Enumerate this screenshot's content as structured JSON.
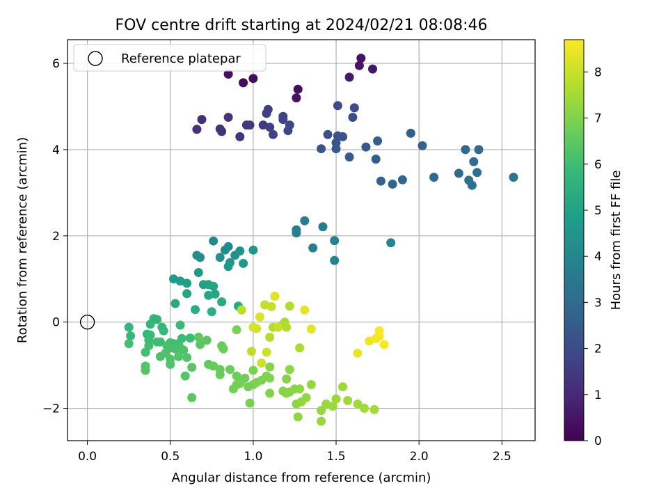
{
  "chart_data": {
    "type": "scatter",
    "title": "FOV centre drift starting at 2024/02/21 08:08:46",
    "xlabel": "Angular distance from reference (arcmin)",
    "ylabel": "Rotation from reference (arcmin)",
    "xlim": [
      -0.12,
      2.7
    ],
    "ylim": [
      -2.75,
      6.55
    ],
    "xticks": [
      0.0,
      0.5,
      1.0,
      1.5,
      2.0,
      2.5
    ],
    "xtick_labels": [
      "0.0",
      "0.5",
      "1.0",
      "1.5",
      "2.0",
      "2.5"
    ],
    "yticks": [
      -2,
      0,
      2,
      4,
      6
    ],
    "ytick_labels": [
      "−2",
      "0",
      "2",
      "4",
      "6"
    ],
    "grid": true,
    "legend": {
      "position": "upper-left",
      "label": "Reference platepar"
    },
    "reference_point": {
      "x": 0.0,
      "y": 0.0
    },
    "colorbar": {
      "label": "Hours from first FF file",
      "min": 0,
      "max": 8.7,
      "ticks": [
        0,
        1,
        2,
        3,
        4,
        5,
        6,
        7,
        8
      ],
      "tick_labels": [
        "0",
        "1",
        "2",
        "3",
        "4",
        "5",
        "6",
        "7",
        "8"
      ],
      "colormap": "viridis",
      "stops": [
        "#440154",
        "#482878",
        "#3e4989",
        "#31688e",
        "#26828e",
        "#1f9e89",
        "#35b779",
        "#6ece58",
        "#b5de2b",
        "#fde725"
      ]
    },
    "points": [
      {
        "x": 0.94,
        "y": 5.55,
        "t": 0.2
      },
      {
        "x": 1.0,
        "y": 5.65,
        "t": 0.25
      },
      {
        "x": 0.85,
        "y": 5.75,
        "t": 0.3
      },
      {
        "x": 1.27,
        "y": 5.4,
        "t": 0.35
      },
      {
        "x": 1.26,
        "y": 5.2,
        "t": 0.4
      },
      {
        "x": 1.65,
        "y": 6.12,
        "t": 0.45
      },
      {
        "x": 1.64,
        "y": 5.95,
        "t": 0.5
      },
      {
        "x": 1.72,
        "y": 5.87,
        "t": 0.55
      },
      {
        "x": 1.58,
        "y": 5.68,
        "t": 0.6
      },
      {
        "x": 0.66,
        "y": 4.47,
        "t": 1.1
      },
      {
        "x": 0.69,
        "y": 4.7,
        "t": 1.15
      },
      {
        "x": 0.8,
        "y": 4.48,
        "t": 1.2
      },
      {
        "x": 0.81,
        "y": 4.42,
        "t": 1.25
      },
      {
        "x": 0.85,
        "y": 4.75,
        "t": 1.3
      },
      {
        "x": 0.92,
        "y": 4.3,
        "t": 1.35
      },
      {
        "x": 0.96,
        "y": 4.57,
        "t": 1.4
      },
      {
        "x": 0.98,
        "y": 4.57,
        "t": 1.45
      },
      {
        "x": 1.06,
        "y": 4.57,
        "t": 1.5
      },
      {
        "x": 1.08,
        "y": 4.84,
        "t": 1.55
      },
      {
        "x": 1.09,
        "y": 4.93,
        "t": 1.6
      },
      {
        "x": 1.1,
        "y": 4.52,
        "t": 1.65
      },
      {
        "x": 1.12,
        "y": 4.35,
        "t": 1.7
      },
      {
        "x": 1.18,
        "y": 4.77,
        "t": 1.75
      },
      {
        "x": 1.18,
        "y": 4.7,
        "t": 1.8
      },
      {
        "x": 1.21,
        "y": 4.44,
        "t": 1.85
      },
      {
        "x": 1.22,
        "y": 4.57,
        "t": 1.9
      },
      {
        "x": 1.51,
        "y": 5.02,
        "t": 2.0
      },
      {
        "x": 1.61,
        "y": 4.97,
        "t": 2.05
      },
      {
        "x": 1.6,
        "y": 4.75,
        "t": 2.1
      },
      {
        "x": 1.45,
        "y": 4.35,
        "t": 2.15
      },
      {
        "x": 1.51,
        "y": 4.32,
        "t": 2.2
      },
      {
        "x": 1.54,
        "y": 4.3,
        "t": 2.25
      },
      {
        "x": 1.5,
        "y": 4.16,
        "t": 2.3
      },
      {
        "x": 1.41,
        "y": 4.02,
        "t": 2.35
      },
      {
        "x": 1.5,
        "y": 4.02,
        "t": 2.4
      },
      {
        "x": 1.58,
        "y": 3.83,
        "t": 2.45
      },
      {
        "x": 1.68,
        "y": 4.06,
        "t": 2.5
      },
      {
        "x": 1.75,
        "y": 4.2,
        "t": 2.55
      },
      {
        "x": 1.74,
        "y": 3.78,
        "t": 2.6
      },
      {
        "x": 1.95,
        "y": 4.38,
        "t": 2.65
      },
      {
        "x": 2.02,
        "y": 4.09,
        "t": 2.7
      },
      {
        "x": 1.77,
        "y": 3.27,
        "t": 2.75
      },
      {
        "x": 1.84,
        "y": 3.2,
        "t": 2.8
      },
      {
        "x": 1.9,
        "y": 3.3,
        "t": 2.85
      },
      {
        "x": 2.09,
        "y": 3.36,
        "t": 2.9
      },
      {
        "x": 2.24,
        "y": 3.45,
        "t": 2.95
      },
      {
        "x": 2.28,
        "y": 4.0,
        "t": 3.0
      },
      {
        "x": 2.36,
        "y": 4.0,
        "t": 3.05
      },
      {
        "x": 2.33,
        "y": 3.72,
        "t": 3.1
      },
      {
        "x": 2.35,
        "y": 3.47,
        "t": 3.15
      },
      {
        "x": 2.3,
        "y": 3.29,
        "t": 3.2
      },
      {
        "x": 2.32,
        "y": 3.17,
        "t": 3.25
      },
      {
        "x": 2.57,
        "y": 3.36,
        "t": 3.3
      },
      {
        "x": 1.31,
        "y": 2.35,
        "t": 3.6
      },
      {
        "x": 1.26,
        "y": 2.14,
        "t": 3.65
      },
      {
        "x": 1.26,
        "y": 2.07,
        "t": 3.7
      },
      {
        "x": 1.42,
        "y": 2.21,
        "t": 3.75
      },
      {
        "x": 1.36,
        "y": 1.72,
        "t": 3.8
      },
      {
        "x": 1.49,
        "y": 1.89,
        "t": 3.85
      },
      {
        "x": 1.49,
        "y": 1.43,
        "t": 3.9
      },
      {
        "x": 1.83,
        "y": 1.84,
        "t": 3.95
      },
      {
        "x": 0.76,
        "y": 1.88,
        "t": 4.1
      },
      {
        "x": 0.85,
        "y": 1.75,
        "t": 4.15
      },
      {
        "x": 0.83,
        "y": 1.67,
        "t": 4.2
      },
      {
        "x": 0.66,
        "y": 1.55,
        "t": 4.25
      },
      {
        "x": 0.68,
        "y": 1.5,
        "t": 4.3
      },
      {
        "x": 0.8,
        "y": 1.5,
        "t": 4.35
      },
      {
        "x": 0.89,
        "y": 1.55,
        "t": 4.4
      },
      {
        "x": 0.92,
        "y": 1.65,
        "t": 4.45
      },
      {
        "x": 1.0,
        "y": 1.67,
        "t": 4.5
      },
      {
        "x": 0.86,
        "y": 1.38,
        "t": 4.55
      },
      {
        "x": 0.85,
        "y": 1.29,
        "t": 4.6
      },
      {
        "x": 0.94,
        "y": 1.36,
        "t": 4.65
      },
      {
        "x": 0.67,
        "y": 1.15,
        "t": 4.7
      },
      {
        "x": 0.52,
        "y": 1.0,
        "t": 4.8
      },
      {
        "x": 0.56,
        "y": 0.95,
        "t": 4.85
      },
      {
        "x": 0.6,
        "y": 0.9,
        "t": 4.9
      },
      {
        "x": 0.7,
        "y": 0.87,
        "t": 4.95
      },
      {
        "x": 0.73,
        "y": 0.87,
        "t": 5.0
      },
      {
        "x": 0.76,
        "y": 0.83,
        "t": 5.05
      },
      {
        "x": 0.6,
        "y": 0.66,
        "t": 5.1
      },
      {
        "x": 0.73,
        "y": 0.62,
        "t": 5.15
      },
      {
        "x": 0.77,
        "y": 0.65,
        "t": 5.2
      },
      {
        "x": 0.53,
        "y": 0.43,
        "t": 5.25
      },
      {
        "x": 0.81,
        "y": 0.47,
        "t": 5.3
      },
      {
        "x": 0.91,
        "y": 0.37,
        "t": 5.35
      },
      {
        "x": 0.65,
        "y": 0.29,
        "t": 5.4
      },
      {
        "x": 0.75,
        "y": 0.24,
        "t": 5.45
      },
      {
        "x": 0.4,
        "y": 0.08,
        "t": 5.7
      },
      {
        "x": 0.42,
        "y": 0.06,
        "t": 5.72
      },
      {
        "x": 0.38,
        "y": -0.05,
        "t": 5.74
      },
      {
        "x": 0.25,
        "y": -0.12,
        "t": 5.76
      },
      {
        "x": 0.45,
        "y": -0.12,
        "t": 5.78
      },
      {
        "x": 0.46,
        "y": -0.2,
        "t": 5.8
      },
      {
        "x": 0.36,
        "y": -0.28,
        "t": 5.82
      },
      {
        "x": 0.26,
        "y": -0.32,
        "t": 5.84
      },
      {
        "x": 0.38,
        "y": -0.3,
        "t": 5.86
      },
      {
        "x": 0.56,
        "y": -0.07,
        "t": 5.88
      },
      {
        "x": 0.62,
        "y": -0.37,
        "t": 5.9
      },
      {
        "x": 0.57,
        "y": -0.38,
        "t": 5.92
      },
      {
        "x": 0.37,
        "y": -0.42,
        "t": 5.94
      },
      {
        "x": 0.42,
        "y": -0.46,
        "t": 5.96
      },
      {
        "x": 0.44,
        "y": -0.46,
        "t": 5.98
      },
      {
        "x": 0.5,
        "y": -0.48,
        "t": 6.0
      },
      {
        "x": 0.52,
        "y": -0.5,
        "t": 6.02
      },
      {
        "x": 0.55,
        "y": -0.5,
        "t": 6.04
      },
      {
        "x": 0.37,
        "y": -0.55,
        "t": 6.06
      },
      {
        "x": 0.25,
        "y": -0.5,
        "t": 6.08
      },
      {
        "x": 0.35,
        "y": -0.7,
        "t": 6.1
      },
      {
        "x": 0.48,
        "y": -0.55,
        "t": 6.12
      },
      {
        "x": 0.5,
        "y": -0.6,
        "t": 6.14
      },
      {
        "x": 0.53,
        "y": -0.62,
        "t": 6.16
      },
      {
        "x": 0.56,
        "y": -0.6,
        "t": 6.18
      },
      {
        "x": 0.58,
        "y": -0.65,
        "t": 6.2
      },
      {
        "x": 0.44,
        "y": -0.8,
        "t": 6.22
      },
      {
        "x": 0.47,
        "y": -0.72,
        "t": 6.24
      },
      {
        "x": 0.5,
        "y": -0.86,
        "t": 6.26
      },
      {
        "x": 0.5,
        "y": -0.98,
        "t": 6.28
      },
      {
        "x": 0.55,
        "y": -0.8,
        "t": 6.3
      },
      {
        "x": 0.6,
        "y": -0.82,
        "t": 6.32
      },
      {
        "x": 0.35,
        "y": -1.02,
        "t": 6.34
      },
      {
        "x": 0.35,
        "y": -1.12,
        "t": 6.36
      },
      {
        "x": 0.59,
        "y": -1.25,
        "t": 6.38
      },
      {
        "x": 0.63,
        "y": -1.05,
        "t": 6.4
      },
      {
        "x": 0.63,
        "y": -1.75,
        "t": 6.42
      },
      {
        "x": 0.68,
        "y": -0.52,
        "t": 6.44
      },
      {
        "x": 0.72,
        "y": -0.42,
        "t": 6.46
      },
      {
        "x": 0.67,
        "y": -0.35,
        "t": 6.48
      },
      {
        "x": 0.73,
        "y": -0.98,
        "t": 6.6
      },
      {
        "x": 0.76,
        "y": -1.02,
        "t": 6.62
      },
      {
        "x": 0.8,
        "y": -1.1,
        "t": 6.64
      },
      {
        "x": 0.8,
        "y": -1.22,
        "t": 6.66
      },
      {
        "x": 0.82,
        "y": -0.62,
        "t": 6.68
      },
      {
        "x": 0.81,
        "y": -0.55,
        "t": 6.7
      },
      {
        "x": 0.86,
        "y": -1.1,
        "t": 6.72
      },
      {
        "x": 0.9,
        "y": -1.25,
        "t": 6.74
      },
      {
        "x": 0.93,
        "y": -1.35,
        "t": 6.76
      },
      {
        "x": 0.95,
        "y": -1.3,
        "t": 6.78
      },
      {
        "x": 0.9,
        "y": -1.45,
        "t": 6.8
      },
      {
        "x": 0.92,
        "y": -1.42,
        "t": 6.82
      },
      {
        "x": 0.88,
        "y": -1.55,
        "t": 6.84
      },
      {
        "x": 0.97,
        "y": -1.5,
        "t": 6.86
      },
      {
        "x": 1.0,
        "y": -1.45,
        "t": 6.88
      },
      {
        "x": 0.98,
        "y": -1.88,
        "t": 6.9
      },
      {
        "x": 0.9,
        "y": -0.18,
        "t": 6.92
      },
      {
        "x": 1.0,
        "y": -1.12,
        "t": 6.94
      },
      {
        "x": 1.02,
        "y": -1.4,
        "t": 6.96
      },
      {
        "x": 1.05,
        "y": -1.35,
        "t": 6.98
      },
      {
        "x": 1.08,
        "y": -1.25,
        "t": 7.0
      },
      {
        "x": 1.1,
        "y": -1.3,
        "t": 7.02
      },
      {
        "x": 1.1,
        "y": -1.65,
        "t": 7.04
      },
      {
        "x": 1.1,
        "y": -1.04,
        "t": 7.06
      },
      {
        "x": 1.2,
        "y": -1.32,
        "t": 7.08
      },
      {
        "x": 1.18,
        "y": -1.6,
        "t": 7.1
      },
      {
        "x": 1.2,
        "y": -1.65,
        "t": 7.12
      },
      {
        "x": 1.22,
        "y": -1.62,
        "t": 7.14
      },
      {
        "x": 1.22,
        "y": -1.1,
        "t": 7.16
      },
      {
        "x": 1.25,
        "y": -1.55,
        "t": 7.18
      },
      {
        "x": 1.26,
        "y": -1.9,
        "t": 7.2
      },
      {
        "x": 1.28,
        "y": -1.55,
        "t": 7.22
      },
      {
        "x": 1.27,
        "y": -2.2,
        "t": 7.24
      },
      {
        "x": 1.29,
        "y": -1.85,
        "t": 7.26
      },
      {
        "x": 1.32,
        "y": -1.75,
        "t": 7.28
      },
      {
        "x": 1.35,
        "y": -1.45,
        "t": 7.3
      },
      {
        "x": 1.41,
        "y": -2.05,
        "t": 7.32
      },
      {
        "x": 1.41,
        "y": -2.3,
        "t": 7.34
      },
      {
        "x": 1.44,
        "y": -1.9,
        "t": 7.36
      },
      {
        "x": 1.48,
        "y": -1.95,
        "t": 7.38
      },
      {
        "x": 1.5,
        "y": -1.78,
        "t": 7.4
      },
      {
        "x": 1.54,
        "y": -1.5,
        "t": 7.42
      },
      {
        "x": 1.57,
        "y": -1.82,
        "t": 7.44
      },
      {
        "x": 1.63,
        "y": -1.9,
        "t": 7.46
      },
      {
        "x": 1.67,
        "y": -2.0,
        "t": 7.48
      },
      {
        "x": 1.73,
        "y": -2.03,
        "t": 7.5
      },
      {
        "x": 1.28,
        "y": -0.6,
        "t": 7.6
      },
      {
        "x": 1.19,
        "y": 0.0,
        "t": 7.62
      },
      {
        "x": 1.18,
        "y": -0.05,
        "t": 7.64
      },
      {
        "x": 1.2,
        "y": -0.12,
        "t": 7.66
      },
      {
        "x": 1.22,
        "y": 0.37,
        "t": 7.68
      },
      {
        "x": 1.12,
        "y": -0.12,
        "t": 7.7
      },
      {
        "x": 1.1,
        "y": -0.35,
        "t": 7.72
      },
      {
        "x": 0.93,
        "y": 0.28,
        "t": 7.8
      },
      {
        "x": 0.99,
        "y": -0.68,
        "t": 7.85
      },
      {
        "x": 1.07,
        "y": 0.4,
        "t": 7.9
      },
      {
        "x": 1.11,
        "y": 0.36,
        "t": 7.95
      },
      {
        "x": 1.15,
        "y": -0.12,
        "t": 8.0
      },
      {
        "x": 1.08,
        "y": -0.7,
        "t": 8.05
      },
      {
        "x": 1.05,
        "y": -0.95,
        "t": 8.1
      },
      {
        "x": 1.0,
        "y": -0.12,
        "t": 8.15
      },
      {
        "x": 1.02,
        "y": -0.15,
        "t": 8.2
      },
      {
        "x": 1.04,
        "y": 0.12,
        "t": 8.25
      },
      {
        "x": 1.13,
        "y": 0.6,
        "t": 8.3
      },
      {
        "x": 1.31,
        "y": 0.28,
        "t": 8.35
      },
      {
        "x": 1.35,
        "y": -0.16,
        "t": 8.4
      },
      {
        "x": 1.63,
        "y": -0.72,
        "t": 8.45
      },
      {
        "x": 1.7,
        "y": -0.44,
        "t": 8.5
      },
      {
        "x": 1.74,
        "y": -0.38,
        "t": 8.55
      },
      {
        "x": 1.76,
        "y": -0.33,
        "t": 8.6
      },
      {
        "x": 1.76,
        "y": -0.2,
        "t": 8.65
      },
      {
        "x": 1.79,
        "y": -0.52,
        "t": 8.7
      }
    ]
  }
}
